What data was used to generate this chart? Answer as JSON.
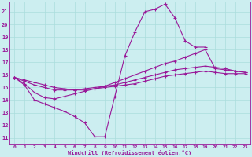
{
  "background_color": "#cceef0",
  "line_color": "#991999",
  "grid_color": "#aadddd",
  "xlabel": "Windchill (Refroidissement éolien,°C)",
  "xlim": [
    -0.5,
    23.5
  ],
  "ylim": [
    10.5,
    21.8
  ],
  "yticks": [
    11,
    12,
    13,
    14,
    15,
    16,
    17,
    18,
    19,
    20,
    21
  ],
  "xticks": [
    0,
    1,
    2,
    3,
    4,
    5,
    6,
    7,
    8,
    9,
    10,
    11,
    12,
    13,
    14,
    15,
    16,
    17,
    18,
    19,
    20,
    21,
    22,
    23
  ],
  "lines": [
    {
      "x": [
        0,
        1,
        2,
        3,
        4,
        5,
        6,
        7,
        8,
        9,
        10,
        11,
        12,
        13,
        14,
        15,
        16,
        17,
        18,
        19
      ],
      "y": [
        15.8,
        15.2,
        14.0,
        13.7,
        13.4,
        13.1,
        12.7,
        12.2,
        11.1,
        11.1,
        14.3,
        17.5,
        19.4,
        21.0,
        21.2,
        21.6,
        20.5,
        18.7,
        18.2,
        18.2
      ]
    },
    {
      "x": [
        0,
        1,
        2,
        3,
        4,
        5,
        6,
        7,
        8,
        9,
        10,
        11,
        12,
        13,
        14,
        15,
        16,
        17,
        18,
        19,
        20,
        21,
        22,
        23
      ],
      "y": [
        15.8,
        15.3,
        14.6,
        14.2,
        14.1,
        14.3,
        14.5,
        14.7,
        14.9,
        15.1,
        15.4,
        15.7,
        16.0,
        16.3,
        16.6,
        16.9,
        17.1,
        17.4,
        17.7,
        18.0,
        16.5,
        16.4,
        16.3,
        16.2
      ]
    },
    {
      "x": [
        0,
        1,
        2,
        3,
        4,
        5,
        6,
        7,
        8,
        9,
        10,
        11,
        12,
        13,
        14,
        15,
        16,
        17,
        18,
        19,
        20,
        21,
        22,
        23
      ],
      "y": [
        15.8,
        15.5,
        15.2,
        15.0,
        14.8,
        14.8,
        14.8,
        14.9,
        15.0,
        15.1,
        15.2,
        15.4,
        15.6,
        15.8,
        16.0,
        16.2,
        16.4,
        16.5,
        16.6,
        16.7,
        16.6,
        16.5,
        16.3,
        16.2
      ]
    },
    {
      "x": [
        0,
        1,
        2,
        3,
        4,
        5,
        6,
        7,
        8,
        9,
        10,
        11,
        12,
        13,
        14,
        15,
        16,
        17,
        18,
        19,
        20,
        21,
        22,
        23
      ],
      "y": [
        15.8,
        15.6,
        15.4,
        15.2,
        15.0,
        14.9,
        14.8,
        14.8,
        14.9,
        15.0,
        15.1,
        15.2,
        15.3,
        15.5,
        15.7,
        15.9,
        16.0,
        16.1,
        16.2,
        16.3,
        16.2,
        16.1,
        16.1,
        16.1
      ]
    }
  ]
}
